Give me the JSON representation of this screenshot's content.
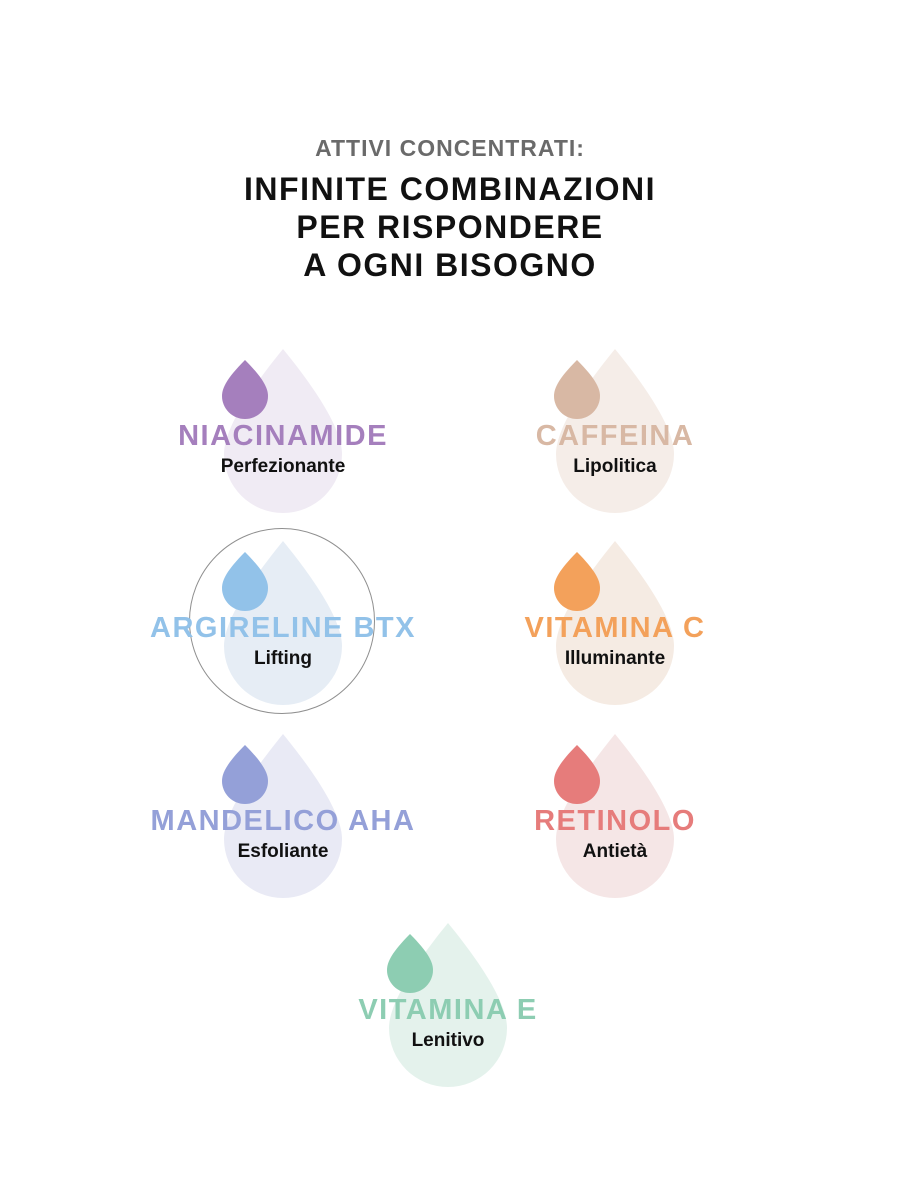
{
  "header": {
    "pretitle": "ATTIVI CONCENTRATI:",
    "title_lines": [
      "INFINITE COMBINAZIONI",
      "PER RISPONDERE",
      "A OGNI BISOGNO"
    ]
  },
  "actives": [
    {
      "name": "NIACINAMIDE",
      "description": "Perfezionante",
      "color": "#a57fbd",
      "pale_color": "#f0ebf4",
      "icon": "drop-icon"
    },
    {
      "name": "CAFFEINA",
      "description": "Lipolitica",
      "color": "#d8b8a4",
      "pale_color": "#f5ede8",
      "icon": "drop-icon"
    },
    {
      "name": "ARGIRELINE BTX",
      "description": "Lifting",
      "color": "#92c2e9",
      "pale_color": "#e6edf5",
      "icon": "drop-icon",
      "selected": true
    },
    {
      "name": "VITAMINA C",
      "description": "Illuminante",
      "color": "#f3a15b",
      "pale_color": "#f5ebe3",
      "icon": "drop-icon"
    },
    {
      "name": "MANDELICO AHA",
      "description": "Esfoliante",
      "color": "#94a0d8",
      "pale_color": "#e9eaf5",
      "icon": "drop-icon"
    },
    {
      "name": "RETINOLO",
      "description": "Antietà",
      "color": "#e67c7b",
      "pale_color": "#f5e6e6",
      "icon": "drop-icon"
    },
    {
      "name": "VITAMINA E",
      "description": "Lenitivo",
      "color": "#8dcdb2",
      "pale_color": "#e4f2ec",
      "icon": "drop-icon"
    }
  ]
}
